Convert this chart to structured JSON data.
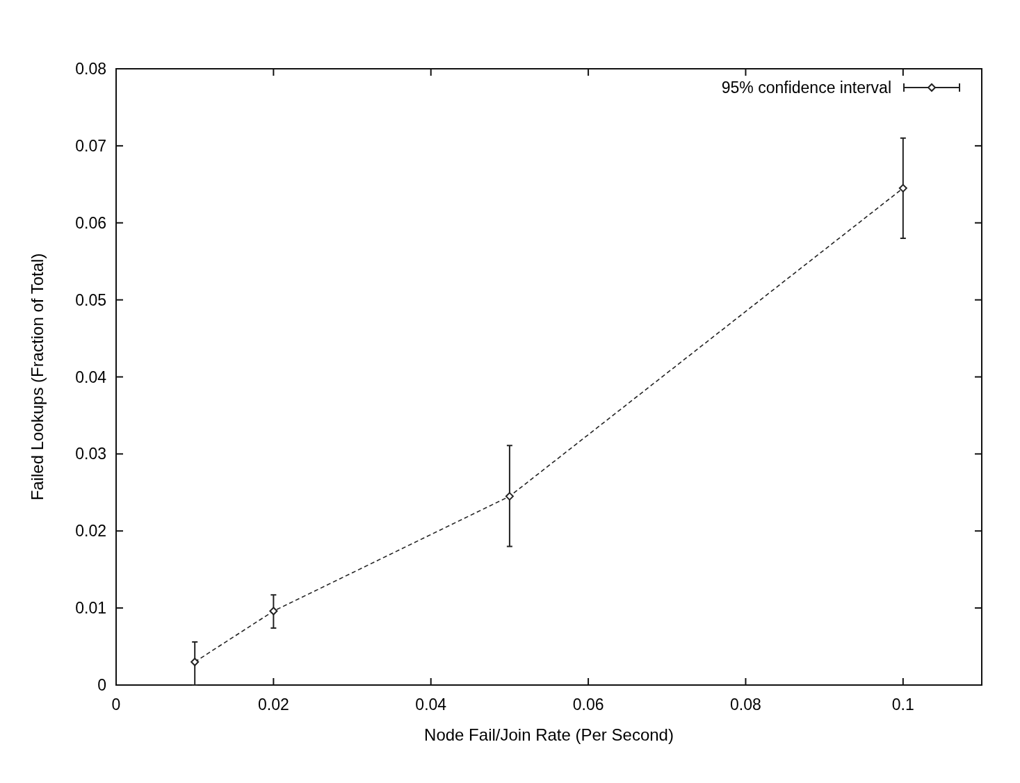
{
  "chart_data": {
    "type": "line",
    "xlabel": "Node Fail/Join Rate (Per Second)",
    "ylabel": "Failed Lookups (Fraction of Total)",
    "x": [
      0.01,
      0.02,
      0.05,
      0.1
    ],
    "series": [
      {
        "name": "95% confidence interval",
        "color": "#222222",
        "values": [
          0.003,
          0.0096,
          0.0245,
          0.0645
        ],
        "errors": [
          [
            0,
            0.0056
          ],
          [
            0.0074,
            0.0117
          ],
          [
            0.018,
            0.0311
          ],
          [
            0.058,
            0.071
          ]
        ]
      }
    ],
    "xlim": [
      0,
      0.11
    ],
    "xticks": [
      0,
      0.02,
      0.04,
      0.06,
      0.08,
      0.1
    ],
    "ylim": [
      0,
      0.08
    ],
    "yticks": [
      0,
      0.01,
      0.02,
      0.03,
      0.04,
      0.05,
      0.06,
      0.07,
      0.08
    ],
    "grid": false,
    "legend": "top right",
    "marker": "diamond",
    "line_style": "dashed"
  }
}
